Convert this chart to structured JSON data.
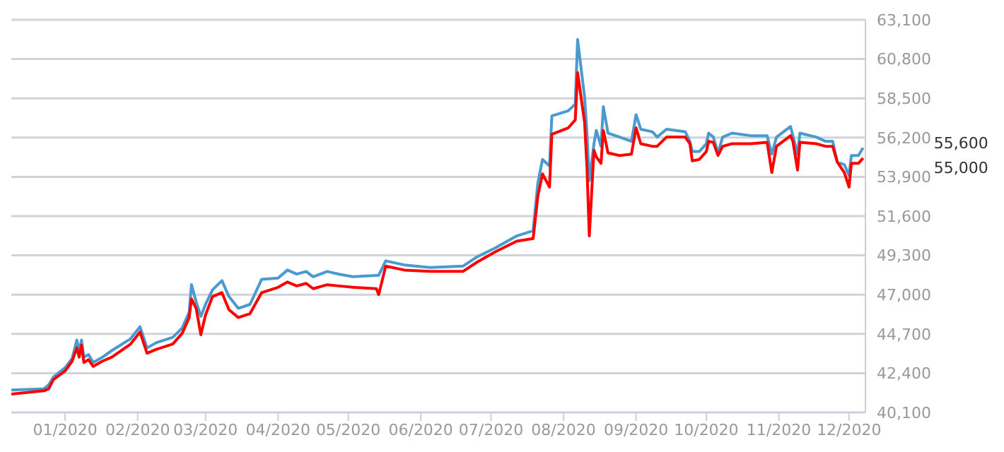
{
  "chart_data": {
    "type": "line",
    "x": [
      "2019-12-09",
      "2019-12-23",
      "2019-12-25",
      "2019-12-27",
      "2020-01-01",
      "2020-01-04",
      "2020-01-06",
      "2020-01-07",
      "2020-01-08",
      "2020-01-09",
      "2020-01-11",
      "2020-01-13",
      "2020-01-17",
      "2020-01-21",
      "2020-01-29",
      "2020-02-02",
      "2020-02-05",
      "2020-02-09",
      "2020-02-16",
      "2020-02-20",
      "2020-02-23",
      "2020-02-24",
      "2020-02-26",
      "2020-02-28",
      "2020-03-01",
      "2020-03-04",
      "2020-03-08",
      "2020-03-11",
      "2020-03-15",
      "2020-03-20",
      "2020-03-25",
      "2020-04-01",
      "2020-04-05",
      "2020-04-09",
      "2020-04-13",
      "2020-04-16",
      "2020-04-22",
      "2020-04-27",
      "2020-05-03",
      "2020-05-13",
      "2020-05-14",
      "2020-05-17",
      "2020-05-25",
      "2020-06-05",
      "2020-06-19",
      "2020-06-25",
      "2020-07-03",
      "2020-07-12",
      "2020-07-19",
      "2020-07-21",
      "2020-07-23",
      "2020-07-26",
      "2020-07-27",
      "2020-08-03",
      "2020-08-06",
      "2020-08-07",
      "2020-08-10",
      "2020-08-11",
      "2020-08-12",
      "2020-08-14",
      "2020-08-15",
      "2020-08-17",
      "2020-08-18",
      "2020-08-20",
      "2020-08-25",
      "2020-08-30",
      "2020-09-01",
      "2020-09-03",
      "2020-09-08",
      "2020-09-10",
      "2020-09-14",
      "2020-09-22",
      "2020-09-24",
      "2020-09-25",
      "2020-09-28",
      "2020-10-01",
      "2020-10-02",
      "2020-10-04",
      "2020-10-06",
      "2020-10-08",
      "2020-10-12",
      "2020-10-20",
      "2020-10-27",
      "2020-10-29",
      "2020-10-31",
      "2020-11-06",
      "2020-11-07",
      "2020-11-09",
      "2020-11-10",
      "2020-11-17",
      "2020-11-21",
      "2020-11-24",
      "2020-11-26",
      "2020-11-29",
      "2020-12-01",
      "2020-12-02",
      "2020-12-05",
      "2020-12-07"
    ],
    "series": [
      {
        "color": "#4a9ad0",
        "values": [
          41410,
          41490,
          41720,
          42180,
          42720,
          43260,
          44340,
          43650,
          44340,
          43340,
          43490,
          43030,
          43340,
          43730,
          44420,
          45120,
          43880,
          44190,
          44500,
          45040,
          45970,
          47590,
          46580,
          45730,
          46430,
          47280,
          47820,
          46890,
          46200,
          46430,
          47900,
          47970,
          48440,
          48200,
          48360,
          48050,
          48360,
          48200,
          48050,
          48130,
          48130,
          48980,
          48740,
          48590,
          48670,
          49210,
          49750,
          50440,
          50750,
          53530,
          54920,
          54530,
          57470,
          57770,
          58160,
          61940,
          58550,
          56460,
          53680,
          55840,
          56620,
          55690,
          58010,
          56460,
          56230,
          55980,
          57540,
          56690,
          56540,
          56230,
          56690,
          56540,
          55980,
          55380,
          55380,
          55840,
          56460,
          56230,
          55300,
          56230,
          56460,
          56310,
          56310,
          55230,
          56230,
          56850,
          56310,
          55230,
          56460,
          56230,
          55980,
          55980,
          54760,
          54610,
          53990,
          55150,
          55150,
          55600
        ]
      },
      {
        "color": "#ff0000",
        "values": [
          41180,
          41370,
          41490,
          42030,
          42530,
          43110,
          43880,
          43340,
          44040,
          43030,
          43190,
          42800,
          43110,
          43340,
          44110,
          44810,
          43570,
          43800,
          44110,
          44730,
          45660,
          46740,
          46200,
          44650,
          45810,
          46890,
          47120,
          46120,
          45660,
          45890,
          47120,
          47430,
          47740,
          47510,
          47660,
          47350,
          47580,
          47510,
          47430,
          47350,
          47000,
          48670,
          48440,
          48360,
          48360,
          48900,
          49520,
          50130,
          50290,
          52760,
          54070,
          53300,
          56390,
          56770,
          57230,
          60010,
          57080,
          54460,
          50440,
          55460,
          55070,
          54690,
          56620,
          55300,
          55150,
          55230,
          56770,
          55840,
          55690,
          55690,
          56230,
          56230,
          55840,
          54840,
          54920,
          55380,
          55990,
          55920,
          55150,
          55690,
          55840,
          55840,
          55920,
          54150,
          55690,
          56310,
          55990,
          54300,
          55920,
          55840,
          55690,
          55690,
          54760,
          54150,
          53300,
          54690,
          54690,
          55000
        ]
      }
    ],
    "xlim": [
      "2019-12-09",
      "2020-12-08"
    ],
    "xticks": [
      {
        "value": "2020-01-01",
        "label": "01/2020"
      },
      {
        "value": "2020-02-01",
        "label": "02/2020"
      },
      {
        "value": "2020-03-01",
        "label": "03/2020"
      },
      {
        "value": "2020-04-01",
        "label": "04/2020"
      },
      {
        "value": "2020-05-01",
        "label": "05/2020"
      },
      {
        "value": "2020-06-01",
        "label": "06/2020"
      },
      {
        "value": "2020-07-01",
        "label": "07/2020"
      },
      {
        "value": "2020-08-01",
        "label": "08/2020"
      },
      {
        "value": "2020-09-01",
        "label": "09/2020"
      },
      {
        "value": "2020-10-01",
        "label": "10/2020"
      },
      {
        "value": "2020-11-01",
        "label": "11/2020"
      },
      {
        "value": "2020-12-01",
        "label": "12/2020"
      }
    ],
    "ylim": [
      40100,
      63100
    ],
    "yticks": [
      {
        "value": 40100,
        "label": "40,100"
      },
      {
        "value": 42400,
        "label": "42,400"
      },
      {
        "value": 44700,
        "label": "44,700"
      },
      {
        "value": 47000,
        "label": "47,000"
      },
      {
        "value": 49300,
        "label": "49,300"
      },
      {
        "value": 51600,
        "label": "51,600"
      },
      {
        "value": 53900,
        "label": "53,900"
      },
      {
        "value": 56200,
        "label": "56,200"
      },
      {
        "value": 58500,
        "label": "58,500"
      },
      {
        "value": 60800,
        "label": "60,800"
      },
      {
        "value": 63100,
        "label": "63,100"
      }
    ],
    "grid": "y",
    "annotations": [
      "55,600",
      "55,000"
    ]
  }
}
